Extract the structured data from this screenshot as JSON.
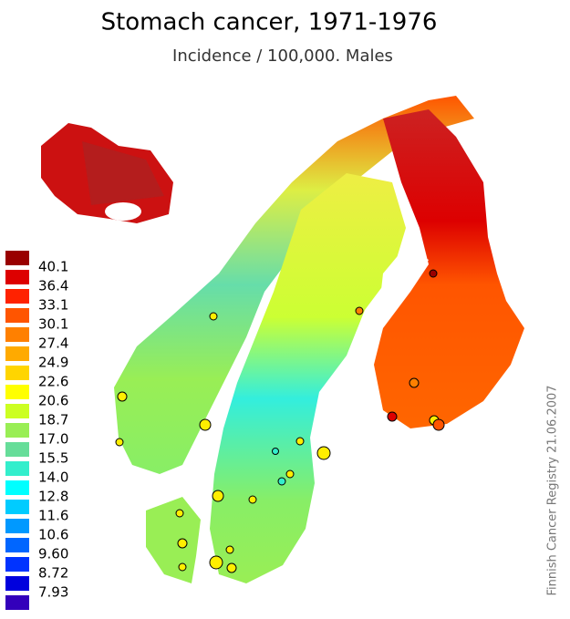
{
  "header": {
    "title": "Stomach cancer, 1971-1976",
    "subtitle": "Incidence / 100,000. Males"
  },
  "legend": {
    "labels": [
      "40.1",
      "36.4",
      "33.1",
      "30.1",
      "27.4",
      "24.9",
      "22.6",
      "20.6",
      "18.7",
      "17.0",
      "15.5",
      "14.0",
      "12.8",
      "11.6",
      "10.6",
      "9.60",
      "8.72",
      "7.93"
    ],
    "colors": [
      "#990000",
      "#dd0000",
      "#ff2200",
      "#ff5500",
      "#ff8000",
      "#ffaa00",
      "#ffd500",
      "#ffff00",
      "#ccff22",
      "#99ee55",
      "#66dd99",
      "#33eecc",
      "#00ffff",
      "#00ccff",
      "#0099ff",
      "#0066ff",
      "#0033ff",
      "#0000dd",
      "#3300bb"
    ]
  },
  "credit": "Finnish Cancer Registry 21.06.2007"
}
